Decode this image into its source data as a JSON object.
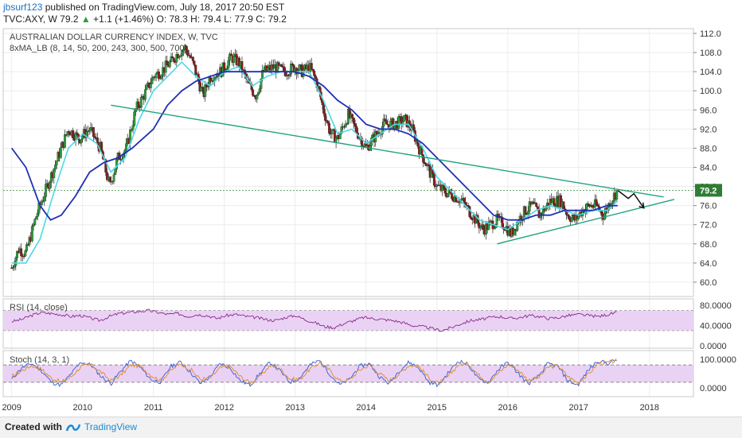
{
  "header": {
    "author": "jbsurf123",
    "published": "published on TradingView.com, July 18, 2017 20:50 EST",
    "symbol": "TVC:AXY, W",
    "price": "79.2",
    "change_arrow": "▲",
    "change": "+1.1 (+1.46%)",
    "ohlc": "O: 78.3  H: 79.4  L: 77.9  C: 79.2"
  },
  "footer": {
    "created_with": "Created with",
    "brand": "TradingView"
  },
  "colors": {
    "candle_up": "#2e9d3a",
    "candle_down": "#8b1c1c",
    "ma_fast": "#4dd8e6",
    "ma_slow": "#1f2fb5",
    "trendline": "#1fa37f",
    "rsi": "#8a2a8a",
    "stoch_k": "#2f5fd0",
    "stoch_d": "#e08a2a",
    "band": "#ead2f5",
    "last_price_bg": "#2e7d32"
  },
  "chart_data": [
    {
      "type": "candlestick",
      "title": "AUSTRALIAN DOLLAR CURRENCY INDEX, W, TVC",
      "indicator_label": "8xMA_LB (8, 14, 50, 200, 243, 300, 500, 700)",
      "x_ticks": [
        "2009",
        "2010",
        "2011",
        "2012",
        "2013",
        "2014",
        "2015",
        "2016",
        "2017",
        "2018"
      ],
      "y_ticks": [
        "60.0",
        "64.0",
        "68.0",
        "72.0",
        "76.0",
        "80.0",
        "84.0",
        "88.0",
        "92.0",
        "96.0",
        "100.0",
        "104.0",
        "108.0",
        "112.0"
      ],
      "y_range": [
        57,
        113
      ],
      "last_price": "79.2",
      "price_path": [
        [
          2009.0,
          63
        ],
        [
          2009.1,
          67
        ],
        [
          2009.2,
          66
        ],
        [
          2009.35,
          74
        ],
        [
          2009.5,
          80
        ],
        [
          2009.65,
          86
        ],
        [
          2009.8,
          92
        ],
        [
          2009.95,
          90
        ],
        [
          2010.1,
          92
        ],
        [
          2010.25,
          88
        ],
        [
          2010.38,
          80
        ],
        [
          2010.5,
          86
        ],
        [
          2010.62,
          88
        ],
        [
          2010.75,
          96
        ],
        [
          2010.9,
          100
        ],
        [
          2011.0,
          103
        ],
        [
          2011.1,
          104
        ],
        [
          2011.25,
          106
        ],
        [
          2011.35,
          108
        ],
        [
          2011.45,
          109
        ],
        [
          2011.55,
          106
        ],
        [
          2011.7,
          99
        ],
        [
          2011.8,
          103
        ],
        [
          2011.95,
          104
        ],
        [
          2012.1,
          107
        ],
        [
          2012.2,
          106
        ],
        [
          2012.35,
          101
        ],
        [
          2012.45,
          99
        ],
        [
          2012.55,
          104
        ],
        [
          2012.7,
          105
        ],
        [
          2012.85,
          104
        ],
        [
          2013.0,
          105
        ],
        [
          2013.1,
          104
        ],
        [
          2013.2,
          105
        ],
        [
          2013.3,
          102
        ],
        [
          2013.4,
          96
        ],
        [
          2013.5,
          91
        ],
        [
          2013.6,
          90
        ],
        [
          2013.75,
          95
        ],
        [
          2013.85,
          92
        ],
        [
          2014.0,
          88
        ],
        [
          2014.1,
          90
        ],
        [
          2014.25,
          93
        ],
        [
          2014.4,
          93
        ],
        [
          2014.55,
          94
        ],
        [
          2014.65,
          92
        ],
        [
          2014.75,
          88
        ],
        [
          2014.9,
          83
        ],
        [
          2015.0,
          80
        ],
        [
          2015.1,
          79
        ],
        [
          2015.25,
          78
        ],
        [
          2015.35,
          77
        ],
        [
          2015.45,
          75
        ],
        [
          2015.55,
          73
        ],
        [
          2015.65,
          71
        ],
        [
          2015.75,
          72
        ],
        [
          2015.85,
          73
        ],
        [
          2015.95,
          72
        ],
        [
          2016.05,
          70
        ],
        [
          2016.15,
          73
        ],
        [
          2016.25,
          75
        ],
        [
          2016.35,
          76
        ],
        [
          2016.45,
          74
        ],
        [
          2016.6,
          77
        ],
        [
          2016.75,
          77
        ],
        [
          2016.85,
          74
        ],
        [
          2016.95,
          73
        ],
        [
          2017.05,
          75
        ],
        [
          2017.15,
          76
        ],
        [
          2017.25,
          76
        ],
        [
          2017.35,
          74
        ],
        [
          2017.45,
          77
        ],
        [
          2017.55,
          79.2
        ]
      ],
      "ma_fast_path": [
        [
          2009.0,
          64
        ],
        [
          2009.2,
          64
        ],
        [
          2009.4,
          69
        ],
        [
          2009.6,
          79
        ],
        [
          2009.8,
          88
        ],
        [
          2010.0,
          91
        ],
        [
          2010.2,
          89
        ],
        [
          2010.4,
          83
        ],
        [
          2010.6,
          86
        ],
        [
          2010.8,
          94
        ],
        [
          2011.0,
          100
        ],
        [
          2011.2,
          103
        ],
        [
          2011.4,
          106
        ],
        [
          2011.6,
          103
        ],
        [
          2011.8,
          101
        ],
        [
          2012.0,
          104
        ],
        [
          2012.2,
          105
        ],
        [
          2012.4,
          101
        ],
        [
          2012.6,
          103
        ],
        [
          2012.8,
          104
        ],
        [
          2013.0,
          104
        ],
        [
          2013.2,
          104
        ],
        [
          2013.4,
          98
        ],
        [
          2013.6,
          91
        ],
        [
          2013.8,
          92
        ],
        [
          2014.0,
          89
        ],
        [
          2014.2,
          91
        ],
        [
          2014.4,
          93
        ],
        [
          2014.6,
          93
        ],
        [
          2014.8,
          88
        ],
        [
          2015.0,
          82
        ],
        [
          2015.2,
          79
        ],
        [
          2015.4,
          76
        ],
        [
          2015.6,
          73
        ],
        [
          2015.8,
          72
        ],
        [
          2016.0,
          71
        ],
        [
          2016.2,
          73
        ],
        [
          2016.4,
          75
        ],
        [
          2016.6,
          76
        ],
        [
          2016.8,
          75
        ],
        [
          2017.0,
          74
        ],
        [
          2017.2,
          75
        ],
        [
          2017.4,
          75
        ],
        [
          2017.55,
          77
        ]
      ],
      "ma_slow_path": [
        [
          2009.0,
          88
        ],
        [
          2009.2,
          84
        ],
        [
          2009.4,
          76
        ],
        [
          2009.55,
          73
        ],
        [
          2009.7,
          74
        ],
        [
          2009.9,
          78
        ],
        [
          2010.1,
          83
        ],
        [
          2010.3,
          85
        ],
        [
          2010.5,
          86
        ],
        [
          2010.7,
          88
        ],
        [
          2011.0,
          92
        ],
        [
          2011.2,
          97
        ],
        [
          2011.4,
          100
        ],
        [
          2011.6,
          102
        ],
        [
          2011.8,
          103
        ],
        [
          2012.0,
          104
        ],
        [
          2012.2,
          104
        ],
        [
          2012.5,
          104
        ],
        [
          2012.8,
          104
        ],
        [
          2013.0,
          104
        ],
        [
          2013.2,
          103
        ],
        [
          2013.4,
          101
        ],
        [
          2013.6,
          98
        ],
        [
          2013.8,
          96
        ],
        [
          2014.0,
          93
        ],
        [
          2014.2,
          92
        ],
        [
          2014.4,
          92
        ],
        [
          2014.6,
          91
        ],
        [
          2014.8,
          89
        ],
        [
          2015.0,
          86
        ],
        [
          2015.2,
          83
        ],
        [
          2015.4,
          80
        ],
        [
          2015.6,
          77
        ],
        [
          2015.8,
          74
        ],
        [
          2016.0,
          73
        ],
        [
          2016.2,
          73
        ],
        [
          2016.4,
          74
        ],
        [
          2016.6,
          74
        ],
        [
          2016.8,
          75
        ],
        [
          2017.0,
          75
        ],
        [
          2017.2,
          75
        ],
        [
          2017.4,
          76
        ],
        [
          2017.55,
          76
        ]
      ],
      "trendlines": [
        {
          "from": [
            2010.4,
            97.0
          ],
          "to": [
            2018.2,
            77.8
          ]
        },
        {
          "from": [
            2015.85,
            68.0
          ],
          "to": [
            2018.35,
            77.3
          ]
        }
      ],
      "projection_arrow": [
        [
          2017.55,
          79.2
        ],
        [
          2017.7,
          77.5
        ],
        [
          2017.78,
          78.5
        ],
        [
          2017.92,
          75.5
        ]
      ]
    },
    {
      "type": "line",
      "title": "RSI (14, close)",
      "y_ticks": [
        "0.0000",
        "40.0000",
        "80.0000"
      ],
      "y_range": [
        -5,
        93
      ],
      "band": [
        30,
        70
      ],
      "values": [
        48,
        52,
        60,
        66,
        64,
        62,
        58,
        60,
        55,
        50,
        58,
        64,
        66,
        68,
        70,
        66,
        62,
        64,
        58,
        62,
        60,
        54,
        60,
        62,
        58,
        56,
        52,
        50,
        56,
        60,
        52,
        46,
        38,
        36,
        44,
        50,
        56,
        54,
        52,
        50,
        46,
        40,
        38,
        34,
        30,
        36,
        44,
        50,
        52,
        56,
        58,
        54,
        56,
        60,
        58,
        54,
        56,
        60,
        62,
        60,
        58,
        62,
        66
      ]
    },
    {
      "type": "line",
      "title": "Stoch (14, 3, 1)",
      "y_ticks": [
        "0.0000",
        "100.0000"
      ],
      "y_range": [
        -30,
        130
      ],
      "band": [
        20,
        80
      ],
      "k_values": [
        30,
        70,
        85,
        60,
        20,
        10,
        50,
        90,
        80,
        40,
        15,
        60,
        95,
        70,
        30,
        20,
        75,
        90,
        55,
        15,
        40,
        85,
        70,
        25,
        10,
        50,
        90,
        60,
        20,
        35,
        80,
        95,
        50,
        10,
        30,
        75,
        85,
        40,
        15,
        60,
        90,
        70,
        20,
        10,
        55,
        95,
        80,
        30,
        20,
        65,
        90,
        50,
        15,
        40,
        85,
        75,
        25,
        10,
        60,
        95,
        85,
        100
      ],
      "d_values": [
        40,
        60,
        78,
        65,
        35,
        20,
        40,
        75,
        80,
        55,
        25,
        45,
        80,
        75,
        45,
        25,
        60,
        85,
        65,
        30,
        35,
        70,
        75,
        40,
        18,
        40,
        78,
        68,
        32,
        30,
        65,
        88,
        62,
        25,
        28,
        62,
        80,
        52,
        25,
        48,
        80,
        75,
        35,
        15,
        42,
        82,
        85,
        45,
        22,
        52,
        82,
        62,
        28,
        35,
        72,
        78,
        40,
        18,
        45,
        85,
        88,
        95
      ]
    }
  ]
}
